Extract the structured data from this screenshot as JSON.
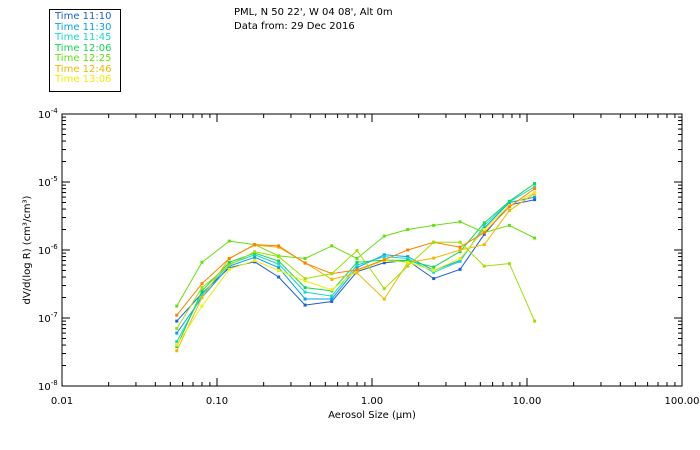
{
  "header": {
    "line1": "PML, N 50 22', W 04 08', Alt 0m",
    "line2": "Data from: 29 Dec 2016"
  },
  "chart_data": {
    "type": "line",
    "xscale": "log",
    "yscale": "log",
    "xlabel": "Aerosol Size (µm)",
    "ylabel": "dV/d(log R) (cm³/cm³)",
    "xlim": [
      0.01,
      100.0
    ],
    "ylim": [
      1e-08,
      0.0001
    ],
    "xticks": [
      {
        "value": 0.01,
        "label": "0.01"
      },
      {
        "value": 0.1,
        "label": "0.10"
      },
      {
        "value": 1.0,
        "label": "1.00"
      },
      {
        "value": 10.0,
        "label": "10.00"
      },
      {
        "value": 100.0,
        "label": "100.00"
      }
    ],
    "yticks": [
      {
        "value": 1e-08,
        "base": "10",
        "exp": "-8"
      },
      {
        "value": 1e-07,
        "base": "10",
        "exp": "-7"
      },
      {
        "value": 1e-06,
        "base": "10",
        "exp": "-6"
      },
      {
        "value": 1e-05,
        "base": "10",
        "exp": "-5"
      },
      {
        "value": 0.0001,
        "base": "10",
        "exp": "-4"
      }
    ],
    "x": [
      0.055,
      0.08,
      0.12,
      0.175,
      0.25,
      0.37,
      0.55,
      0.8,
      1.2,
      1.7,
      2.5,
      3.7,
      5.3,
      7.7,
      11.2
    ],
    "series": [
      {
        "name": "Time 11:10",
        "color": "#1f5fd0",
        "values": [
          9e-08,
          2.3e-07,
          5.5e-07,
          6.7e-07,
          4e-07,
          1.55e-07,
          1.75e-07,
          4.8e-07,
          6.5e-07,
          7e-07,
          3.8e-07,
          5.2e-07,
          1.7e-06,
          4.6e-06,
          5.5e-06
        ]
      },
      {
        "name": "Time 11:30",
        "color": "#0aa0e8",
        "values": [
          6e-08,
          2e-07,
          5.8e-07,
          7.8e-07,
          5.5e-07,
          1.9e-07,
          1.9e-07,
          5.5e-07,
          8.5e-07,
          8e-07,
          5e-07,
          7e-07,
          2.1e-06,
          5e-06,
          6e-06
        ]
      },
      {
        "name": "Time 11:45",
        "color": "#18d8c8",
        "values": [
          4.5e-08,
          2.2e-07,
          6.2e-07,
          8.5e-07,
          6.2e-07,
          2.4e-07,
          2.1e-07,
          6e-07,
          8e-07,
          7.5e-07,
          4.7e-07,
          6.8e-07,
          2.3e-06,
          5.1e-06,
          8.5e-06
        ]
      },
      {
        "name": "Time 12:06",
        "color": "#10d850",
        "values": [
          3.8e-08,
          2.5e-07,
          6.6e-07,
          9e-07,
          6.9e-07,
          2.8e-07,
          2.5e-07,
          6.6e-07,
          7.1e-07,
          7e-07,
          5.6e-07,
          9.5e-07,
          2.5e-06,
          5.2e-06,
          9.5e-06
        ]
      },
      {
        "name": "Time 12:25",
        "color": "#64e010",
        "values": [
          1.5e-07,
          6.6e-07,
          1.35e-06,
          1.2e-06,
          8.2e-07,
          7.5e-07,
          1.15e-06,
          7.5e-07,
          1.6e-06,
          2e-06,
          2.3e-06,
          2.6e-06,
          1.8e-06,
          2.3e-06,
          1.5e-06
        ]
      },
      {
        "name": "Time 12:46",
        "color": "#f0b800",
        "values": [
          3.3e-08,
          2e-07,
          7.5e-07,
          1.18e-06,
          1.1e-06,
          6.5e-07,
          3.7e-07,
          4.6e-07,
          1.9e-07,
          6.5e-07,
          7.6e-07,
          1e-06,
          1.2e-06,
          3.8e-06,
          6.8e-06
        ]
      },
      {
        "name": "Time 13:06",
        "color": "#f0f000",
        "values": [
          4e-08,
          1.5e-07,
          5.2e-07,
          7e-07,
          5e-07,
          3.5e-07,
          2.6e-07,
          5e-07,
          7e-07,
          6.6e-07,
          5e-07,
          7.5e-07,
          2e-06,
          4.5e-06,
          7e-06
        ]
      }
    ],
    "extra_series": [
      {
        "name": "orange",
        "color": "#ff8000",
        "values": [
          1.1e-07,
          3.2e-07,
          7.5e-07,
          1.2e-06,
          1.15e-06,
          6.4e-07,
          4.5e-07,
          5.1e-07,
          7.2e-07,
          1e-06,
          1.3e-06,
          1.1e-06,
          1.8e-06,
          4.3e-06,
          8e-06
        ]
      },
      {
        "name": "yellow-green",
        "color": "#a0e000",
        "values": [
          7e-08,
          2.8e-07,
          6e-07,
          9.4e-07,
          8e-07,
          3.8e-07,
          4.5e-07,
          9.8e-07,
          2.7e-07,
          5.8e-07,
          1.3e-06,
          1.3e-06,
          5.8e-07,
          6.3e-07,
          9e-08
        ]
      }
    ]
  }
}
